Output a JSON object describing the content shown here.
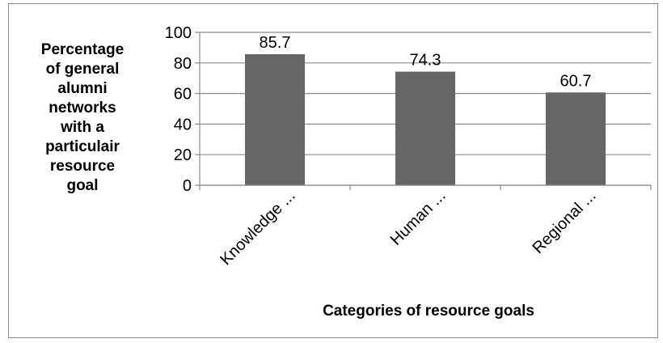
{
  "chart_data": {
    "type": "bar",
    "categories": [
      "Knowledge ...",
      "Human ...",
      "Regional ..."
    ],
    "values": [
      85.7,
      74.3,
      60.7
    ],
    "data_labels": [
      "85.7",
      "74.3",
      "60.7"
    ],
    "title": "",
    "xlabel": "Categories of resource goals",
    "ylabel_lines": [
      "Percentage",
      "of general",
      "alumni",
      "networks",
      "with a",
      "particulair",
      "resource",
      "goal"
    ],
    "ylim": [
      0,
      100
    ],
    "yticks": [
      "0",
      "20",
      "40",
      "60",
      "80",
      "100"
    ],
    "ytick_values": [
      0,
      20,
      40,
      60,
      80,
      100
    ],
    "grid": true,
    "bar_color": "#666666",
    "grid_color": "#8c8c8c"
  }
}
